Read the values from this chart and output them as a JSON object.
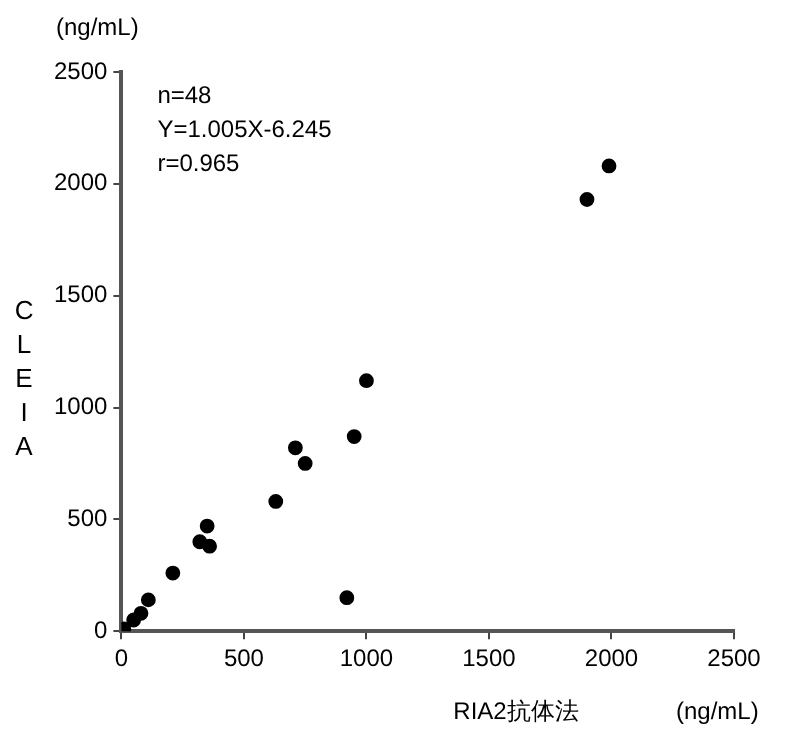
{
  "chart_data": {
    "type": "scatter",
    "xlabel": "RIA2抗体法",
    "ylabel": "CLEIA",
    "annotations": [
      "(ng/mL)",
      "(ng/mL)",
      "n=48",
      "Y=1.005X-6.245",
      "r=0.965"
    ],
    "series": [
      {
        "color": "#000000",
        "x": [
          1990,
          1900,
          1000,
          950,
          710,
          750,
          920,
          630,
          350,
          320,
          360,
          210,
          10,
          50,
          80,
          110
        ],
        "values": [
          2080,
          1930,
          1120,
          870,
          820,
          750,
          150,
          580,
          470,
          400,
          380,
          260,
          10,
          50,
          80,
          140
        ]
      }
    ],
    "xlim": [
      0,
      2500
    ],
    "xticks": [
      0,
      500,
      1000,
      1500,
      2000,
      2500
    ],
    "ylim": [
      0,
      2500
    ],
    "yticks": [
      0,
      500,
      1000,
      1500,
      2000,
      2500
    ],
    "grid": false,
    "legend": false,
    "marker": "circle"
  }
}
